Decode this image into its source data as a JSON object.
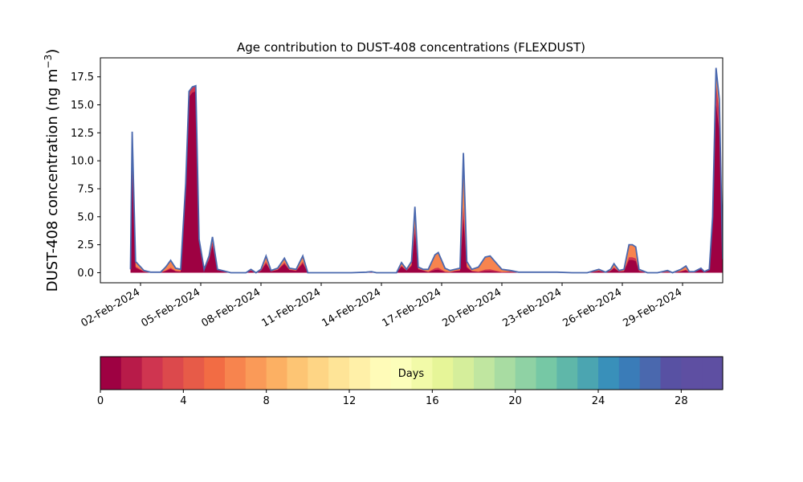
{
  "chart_data": {
    "type": "area",
    "title": "Age contribution to DUST-408 concentrations (FLEXDUST)",
    "ylabel": "DUST-408 concentration (ng m",
    "ylabel_unit_sup": "−3",
    "ylabel_close": ")",
    "xlim": [
      "2024-01-31T00:00",
      "2024-03-02T00:00"
    ],
    "ylim": [
      -0.9,
      19.2
    ],
    "yticks": [
      {
        "value": 0.0,
        "label": "0.0"
      },
      {
        "value": 2.5,
        "label": "2.5"
      },
      {
        "value": 5.0,
        "label": "5.0"
      },
      {
        "value": 7.5,
        "label": "7.5"
      },
      {
        "value": 10.0,
        "label": "10.0"
      },
      {
        "value": 12.5,
        "label": "12.5"
      },
      {
        "value": 15.0,
        "label": "15.0"
      },
      {
        "value": 17.5,
        "label": "17.5"
      }
    ],
    "xticks": [
      {
        "value": "2024-02-02",
        "label": "02-Feb-2024"
      },
      {
        "value": "2024-02-05",
        "label": "05-Feb-2024"
      },
      {
        "value": "2024-02-08",
        "label": "08-Feb-2024"
      },
      {
        "value": "2024-02-11",
        "label": "11-Feb-2024"
      },
      {
        "value": "2024-02-14",
        "label": "14-Feb-2024"
      },
      {
        "value": "2024-02-17",
        "label": "17-Feb-2024"
      },
      {
        "value": "2024-02-20",
        "label": "20-Feb-2024"
      },
      {
        "value": "2024-02-23",
        "label": "23-Feb-2024"
      },
      {
        "value": "2024-02-26",
        "label": "26-Feb-2024"
      },
      {
        "value": "2024-02-29",
        "label": "29-Feb-2024"
      }
    ],
    "data_range": [
      "2024-02-01T12:00",
      "2024-03-01T00:00"
    ],
    "layers": {
      "note_colors": "stacked contributions by particle age; colors follow the Days colorbar",
      "total": [
        [
          "2024-02-01T12:00",
          0.3
        ],
        [
          "2024-02-01T14:00",
          12.6
        ],
        [
          "2024-02-01T18:00",
          1.0
        ],
        [
          "2024-02-02T04:00",
          0.2
        ],
        [
          "2024-02-02T12:00",
          0.05
        ],
        [
          "2024-02-03T00:00",
          0.05
        ],
        [
          "2024-02-03T06:00",
          0.5
        ],
        [
          "2024-02-03T12:00",
          1.1
        ],
        [
          "2024-02-03T18:00",
          0.4
        ],
        [
          "2024-02-04T00:00",
          0.3
        ],
        [
          "2024-02-04T06:00",
          8.0
        ],
        [
          "2024-02-04T10:00",
          16.2
        ],
        [
          "2024-02-04T14:00",
          16.6
        ],
        [
          "2024-02-04T18:00",
          16.7
        ],
        [
          "2024-02-04T22:00",
          3.0
        ],
        [
          "2024-02-05T04:00",
          0.3
        ],
        [
          "2024-02-05T10:00",
          1.5
        ],
        [
          "2024-02-05T14:00",
          3.2
        ],
        [
          "2024-02-05T20:00",
          0.3
        ],
        [
          "2024-02-06T12:00",
          0.0
        ],
        [
          "2024-02-07T06:00",
          0.0
        ],
        [
          "2024-02-07T12:00",
          0.3
        ],
        [
          "2024-02-07T18:00",
          0.0
        ],
        [
          "2024-02-08T00:00",
          0.3
        ],
        [
          "2024-02-08T06:00",
          1.5
        ],
        [
          "2024-02-08T12:00",
          0.2
        ],
        [
          "2024-02-08T20:00",
          0.4
        ],
        [
          "2024-02-09T04:00",
          1.3
        ],
        [
          "2024-02-09T10:00",
          0.4
        ],
        [
          "2024-02-09T18:00",
          0.3
        ],
        [
          "2024-02-10T02:00",
          1.5
        ],
        [
          "2024-02-10T08:00",
          0.0
        ],
        [
          "2024-02-11T12:00",
          0.0
        ],
        [
          "2024-02-12T12:00",
          0.0
        ],
        [
          "2024-02-13T06:00",
          0.05
        ],
        [
          "2024-02-13T12:00",
          0.1
        ],
        [
          "2024-02-13T18:00",
          0.0
        ],
        [
          "2024-02-14T18:00",
          0.0
        ],
        [
          "2024-02-15T00:00",
          0.9
        ],
        [
          "2024-02-15T06:00",
          0.3
        ],
        [
          "2024-02-15T12:00",
          1.0
        ],
        [
          "2024-02-15T16:00",
          5.9
        ],
        [
          "2024-02-15T20:00",
          0.5
        ],
        [
          "2024-02-16T02:00",
          0.3
        ],
        [
          "2024-02-16T08:00",
          0.3
        ],
        [
          "2024-02-16T16:00",
          1.6
        ],
        [
          "2024-02-16T20:00",
          1.8
        ],
        [
          "2024-02-17T04:00",
          0.4
        ],
        [
          "2024-02-17T10:00",
          0.2
        ],
        [
          "2024-02-17T16:00",
          0.3
        ],
        [
          "2024-02-17T22:00",
          0.4
        ],
        [
          "2024-02-18T02:00",
          10.7
        ],
        [
          "2024-02-18T06:00",
          1.0
        ],
        [
          "2024-02-18T12:00",
          0.3
        ],
        [
          "2024-02-18T20:00",
          0.5
        ],
        [
          "2024-02-19T04:00",
          1.4
        ],
        [
          "2024-02-19T10:00",
          1.5
        ],
        [
          "2024-02-19T18:00",
          0.8
        ],
        [
          "2024-02-20T00:00",
          0.3
        ],
        [
          "2024-02-20T10:00",
          0.2
        ],
        [
          "2024-02-20T20:00",
          0.05
        ],
        [
          "2024-02-21T12:00",
          0.05
        ],
        [
          "2024-02-22T06:00",
          0.05
        ],
        [
          "2024-02-22T18:00",
          0.05
        ],
        [
          "2024-02-23T12:00",
          0.0
        ],
        [
          "2024-02-24T06:00",
          0.0
        ],
        [
          "2024-02-24T20:00",
          0.3
        ],
        [
          "2024-02-25T04:00",
          0.05
        ],
        [
          "2024-02-25T10:00",
          0.3
        ],
        [
          "2024-02-25T14:00",
          0.8
        ],
        [
          "2024-02-25T20:00",
          0.2
        ],
        [
          "2024-02-26T02:00",
          0.3
        ],
        [
          "2024-02-26T08:00",
          2.5
        ],
        [
          "2024-02-26T12:00",
          2.5
        ],
        [
          "2024-02-26T16:00",
          2.3
        ],
        [
          "2024-02-26T20:00",
          0.3
        ],
        [
          "2024-02-27T06:00",
          0.0
        ],
        [
          "2024-02-27T18:00",
          0.0
        ],
        [
          "2024-02-28T00:00",
          0.1
        ],
        [
          "2024-02-28T06:00",
          0.2
        ],
        [
          "2024-02-28T12:00",
          0.0
        ],
        [
          "2024-02-28T22:00",
          0.3
        ],
        [
          "2024-02-29T04:00",
          0.6
        ],
        [
          "2024-02-29T08:00",
          0.1
        ],
        [
          "2024-02-29T14:00",
          0.1
        ],
        [
          "2024-02-29T22:00",
          0.4
        ],
        [
          "2024-03-01T02:00",
          0.1
        ],
        [
          "2024-03-01T08:00",
          0.3
        ],
        [
          "2024-03-01T12:00",
          5.0
        ],
        [
          "2024-03-01T16:00",
          18.3
        ],
        [
          "2024-03-01T20:00",
          15.5
        ],
        [
          "2024-03-02T00:00",
          1.2
        ]
      ],
      "day0_fraction": [
        [
          "2024-02-01T14:00",
          0.72
        ],
        [
          "2024-02-01T18:00",
          0.45
        ],
        [
          "2024-02-03T12:00",
          0.3
        ],
        [
          "2024-02-04T14:00",
          0.97
        ],
        [
          "2024-02-05T14:00",
          0.75
        ],
        [
          "2024-02-08T06:00",
          0.55
        ],
        [
          "2024-02-09T04:00",
          0.6
        ],
        [
          "2024-02-10T02:00",
          0.55
        ],
        [
          "2024-02-15T16:00",
          0.6
        ],
        [
          "2024-02-16T20:00",
          0.15
        ],
        [
          "2024-02-18T02:00",
          0.45
        ],
        [
          "2024-02-19T10:00",
          0.1
        ],
        [
          "2024-02-25T14:00",
          0.5
        ],
        [
          "2024-02-26T12:00",
          0.45
        ],
        [
          "2024-03-01T16:00",
          0.82
        ]
      ]
    },
    "colorbar": {
      "label": "Days",
      "range": [
        0,
        30
      ],
      "ticks": [
        {
          "value": 0,
          "label": "0"
        },
        {
          "value": 4,
          "label": "4"
        },
        {
          "value": 8,
          "label": "8"
        },
        {
          "value": 12,
          "label": "12"
        },
        {
          "value": 16,
          "label": "16"
        },
        {
          "value": 20,
          "label": "20"
        },
        {
          "value": 24,
          "label": "24"
        },
        {
          "value": 28,
          "label": "28"
        }
      ],
      "colors": [
        "#9e0142",
        "#b81b49",
        "#cf3550",
        "#dc494c",
        "#e75b48",
        "#f26c44",
        "#f7844e",
        "#fa9a58",
        "#fcb063",
        "#fdc574",
        "#fed585",
        "#fee497",
        "#fff0a8",
        "#fffbb8",
        "#fcfeba",
        "#f2faa8",
        "#e6f598",
        "#d5ee9b",
        "#c0e6a0",
        "#a8dca2",
        "#8fd2a4",
        "#76c8a5",
        "#5fb7a9",
        "#4ba5b1",
        "#3990ba",
        "#3a7cb8",
        "#4a68ae",
        "#5851a3",
        "#5e4fa2",
        "#5e4fa2"
      ]
    },
    "colors": {
      "outline": "#4a68ae",
      "fresh": "#9e0142",
      "aged": "#f7844e",
      "mid": "#cf3550"
    }
  }
}
